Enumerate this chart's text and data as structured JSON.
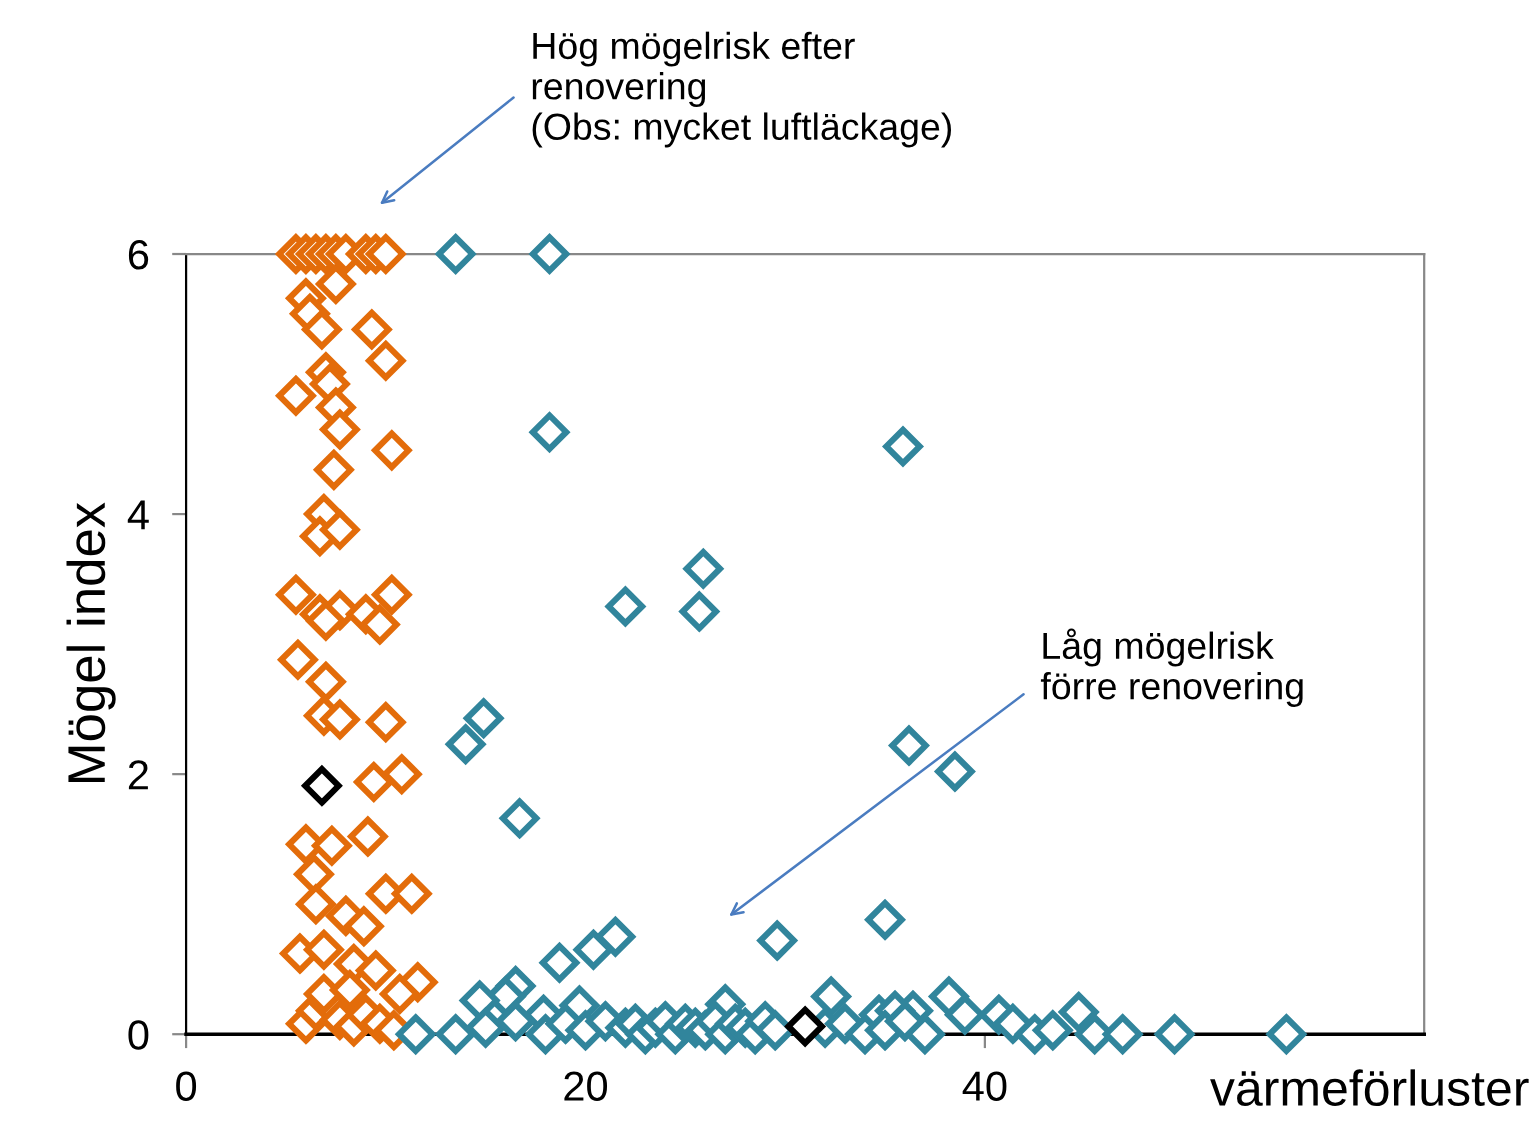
{
  "chart_data": {
    "type": "scatter",
    "xlabel": "värmeförluster",
    "ylabel": "Mögel index",
    "annotations": [
      "Hög mögelrisk efter\nrenovering\n(Obs: mycket luftläckage)",
      "Låg mögelrisk\nförre renovering"
    ],
    "xlim": [
      0,
      62
    ],
    "ylim": [
      0,
      6
    ],
    "xticks": [
      0,
      20,
      40
    ],
    "yticks": [
      0,
      2,
      4,
      6
    ],
    "grid": false,
    "legend": false,
    "marker": "diamond",
    "series": [
      {
        "color": "#e36c0a",
        "x": [
          5.5,
          6,
          6.5,
          7,
          7.5,
          8,
          9,
          9.5,
          10,
          7.5,
          6.0,
          6.2,
          6.8,
          9.3,
          10.0,
          7.0,
          7.2,
          5.5,
          7.5,
          7.7,
          10.3,
          7.4,
          6.9,
          6.7,
          7.7,
          5.5,
          6.7,
          7.7,
          9.0,
          10.3,
          9.7,
          7.0,
          5.6,
          7.0,
          6.9,
          7.7,
          10.0,
          9.4,
          10.8,
          6.0,
          7.3,
          9.1,
          6.4,
          6.5,
          10.0,
          11.3,
          8.0,
          8.9,
          5.7,
          6.9,
          8.4,
          9.5,
          11.6,
          10.7,
          6.0,
          6.5,
          7.2,
          7.7,
          8.4,
          9.0,
          9.7,
          10.4,
          6.9,
          8.2
        ],
        "values": [
          6,
          6,
          6,
          6,
          6,
          6,
          6,
          6,
          6,
          5.77,
          5.66,
          5.54,
          5.42,
          5.42,
          5.18,
          5.09,
          5.0,
          4.91,
          4.82,
          4.65,
          4.49,
          4.34,
          4.0,
          3.83,
          3.88,
          3.38,
          3.23,
          3.26,
          3.23,
          3.38,
          3.15,
          3.18,
          2.88,
          2.71,
          2.45,
          2.42,
          2.4,
          1.94,
          2.0,
          1.46,
          1.45,
          1.52,
          1.23,
          1.0,
          1.08,
          1.08,
          0.91,
          0.83,
          0.62,
          0.65,
          0.54,
          0.49,
          0.4,
          0.31,
          0.08,
          0.18,
          0.23,
          0.11,
          0.06,
          0.15,
          0.08,
          0.03,
          0.31,
          0.34
        ]
      },
      {
        "color": "#31859c",
        "x": [
          13.5,
          18.2,
          18.2,
          35.9,
          25.9,
          22.0,
          25.7,
          14.9,
          14.0,
          16.7,
          36.2,
          38.5,
          29.6,
          35.0,
          18.7,
          20.4,
          21.5,
          16.5,
          16.0,
          14.7,
          19.7,
          17.9,
          27.0,
          32.3,
          38.2,
          39.0,
          40.7,
          36.4,
          34.7,
          35.5,
          11.5,
          13.5,
          15,
          16.5,
          18,
          19,
          20,
          21,
          22,
          22.5,
          23,
          23.5,
          24,
          24.5,
          25,
          25.5,
          26,
          26.5,
          27,
          27.5,
          28,
          28.5,
          29,
          29.5,
          32,
          33,
          34,
          35,
          36,
          37,
          41.4,
          42.5,
          43.4,
          44.7,
          45.5,
          46.9,
          49.5,
          55.1
        ],
        "values": [
          6,
          6,
          4.63,
          4.52,
          3.58,
          3.29,
          3.25,
          2.43,
          2.23,
          1.66,
          2.22,
          2.02,
          0.72,
          0.88,
          0.55,
          0.65,
          0.75,
          0.37,
          0.29,
          0.26,
          0.22,
          0.15,
          0.23,
          0.29,
          0.29,
          0.15,
          0.15,
          0.18,
          0.15,
          0.18,
          0,
          0,
          0.05,
          0.1,
          0,
          0.08,
          0.03,
          0.1,
          0.05,
          0.08,
          0,
          0.05,
          0.1,
          0,
          0.08,
          0.05,
          0.03,
          0.1,
          0,
          0.08,
          0.05,
          0,
          0.1,
          0.03,
          0.05,
          0.08,
          0,
          0.03,
          0.1,
          0,
          0.08,
          0,
          0.03,
          0.17,
          0,
          0,
          0,
          0
        ]
      },
      {
        "color": "#000000",
        "x": [
          6.8,
          31.0
        ],
        "values": [
          1.91,
          0.06
        ]
      }
    ]
  }
}
